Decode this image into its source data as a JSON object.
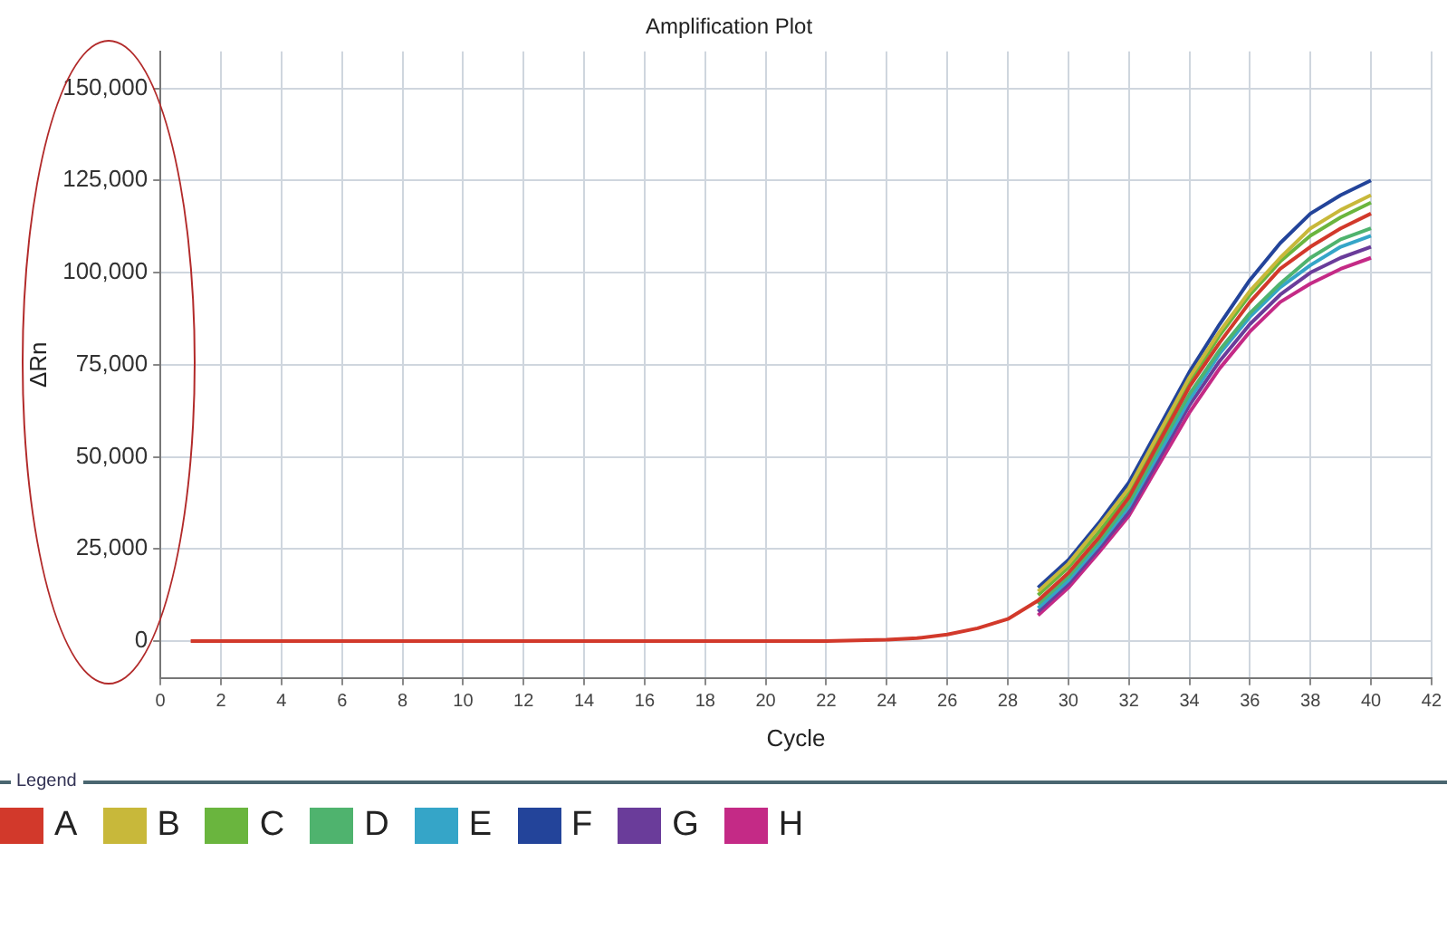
{
  "chart_data": {
    "type": "line",
    "title": "Amplification Plot",
    "xlabel": "Cycle",
    "ylabel": "ΔRn",
    "legend_title": "Legend",
    "x": [
      1,
      2,
      3,
      4,
      5,
      6,
      7,
      8,
      9,
      10,
      11,
      12,
      13,
      14,
      15,
      16,
      17,
      18,
      19,
      20,
      21,
      22,
      23,
      24,
      25,
      26,
      27,
      28,
      29,
      30,
      31,
      32,
      33,
      34,
      35,
      36,
      37,
      38,
      39,
      40
    ],
    "xlim": [
      0,
      42
    ],
    "xticks": [
      0,
      2,
      4,
      6,
      8,
      10,
      12,
      14,
      16,
      18,
      20,
      22,
      24,
      26,
      28,
      30,
      32,
      34,
      36,
      38,
      40,
      42
    ],
    "ylim": [
      -10000,
      160000
    ],
    "yticks": [
      0,
      {
        "value": 25000,
        "label": "25,000"
      },
      {
        "value": 50000,
        "label": "50,000"
      },
      {
        "value": 75000,
        "label": "75,000"
      },
      {
        "value": 100000,
        "label": "100,000"
      },
      {
        "value": 125000,
        "label": "125,000"
      },
      {
        "value": 150000,
        "label": "150,000"
      }
    ],
    "grid": true,
    "legend": "bottom",
    "marker": "none",
    "line_style": "solid",
    "series": [
      {
        "name": "A",
        "color": "#d2392b",
        "values": [
          0,
          0,
          0,
          0,
          0,
          0,
          0,
          0,
          0,
          0,
          0,
          0,
          0,
          0,
          0,
          0,
          0,
          0,
          0,
          0,
          0,
          0,
          200,
          400,
          800,
          1800,
          3500,
          6000,
          11000,
          18500,
          28000,
          39000,
          54000,
          69000,
          81000,
          92000,
          101000,
          107000,
          112000,
          116000
        ]
      },
      {
        "name": "B",
        "color": "#c8b83a",
        "values": [
          null,
          null,
          null,
          null,
          null,
          null,
          null,
          null,
          null,
          null,
          null,
          null,
          null,
          null,
          null,
          null,
          null,
          null,
          null,
          null,
          null,
          null,
          null,
          null,
          null,
          null,
          null,
          null,
          13500,
          21000,
          31000,
          41500,
          56500,
          71500,
          84000,
          95000,
          104000,
          112000,
          117000,
          121000
        ]
      },
      {
        "name": "C",
        "color": "#6ab53e",
        "values": [
          null,
          null,
          null,
          null,
          null,
          null,
          null,
          null,
          null,
          null,
          null,
          null,
          null,
          null,
          null,
          null,
          null,
          null,
          null,
          null,
          null,
          null,
          null,
          null,
          null,
          null,
          null,
          null,
          12500,
          20000,
          29500,
          40000,
          55000,
          70000,
          83000,
          94000,
          103000,
          110000,
          115000,
          119000
        ]
      },
      {
        "name": "D",
        "color": "#4fb36e",
        "values": [
          null,
          null,
          null,
          null,
          null,
          null,
          null,
          null,
          null,
          null,
          null,
          null,
          null,
          null,
          null,
          null,
          null,
          null,
          null,
          null,
          null,
          null,
          null,
          null,
          null,
          null,
          null,
          null,
          10000,
          17500,
          27000,
          37500,
          52500,
          67000,
          79000,
          89000,
          97000,
          104000,
          109000,
          112000
        ]
      },
      {
        "name": "E",
        "color": "#35a5c8",
        "values": [
          null,
          null,
          null,
          null,
          null,
          null,
          null,
          null,
          null,
          null,
          null,
          null,
          null,
          null,
          null,
          null,
          null,
          null,
          null,
          null,
          null,
          null,
          null,
          null,
          null,
          null,
          null,
          null,
          9000,
          16500,
          26000,
          36500,
          51000,
          65500,
          78000,
          88000,
          96000,
          102000,
          107000,
          110000
        ]
      },
      {
        "name": "F",
        "color": "#23449a",
        "values": [
          null,
          null,
          null,
          null,
          null,
          null,
          null,
          null,
          null,
          null,
          null,
          null,
          null,
          null,
          null,
          null,
          null,
          null,
          null,
          null,
          null,
          null,
          null,
          null,
          null,
          null,
          null,
          null,
          14500,
          22000,
          32000,
          43000,
          58000,
          73000,
          86000,
          98000,
          108000,
          116000,
          121000,
          125000
        ]
      },
      {
        "name": "G",
        "color": "#6a3c9a",
        "values": [
          null,
          null,
          null,
          null,
          null,
          null,
          null,
          null,
          null,
          null,
          null,
          null,
          null,
          null,
          null,
          null,
          null,
          null,
          null,
          null,
          null,
          null,
          null,
          null,
          null,
          null,
          null,
          null,
          8000,
          15500,
          25000,
          35000,
          49500,
          64000,
          76000,
          86000,
          94000,
          100000,
          104000,
          107000
        ]
      },
      {
        "name": "H",
        "color": "#c42a86",
        "values": [
          null,
          null,
          null,
          null,
          null,
          null,
          null,
          null,
          null,
          null,
          null,
          null,
          null,
          null,
          null,
          null,
          null,
          null,
          null,
          null,
          null,
          null,
          null,
          null,
          null,
          null,
          null,
          null,
          7000,
          14500,
          24000,
          34000,
          48000,
          62000,
          74000,
          84000,
          92000,
          97000,
          101000,
          104000
        ]
      }
    ]
  }
}
